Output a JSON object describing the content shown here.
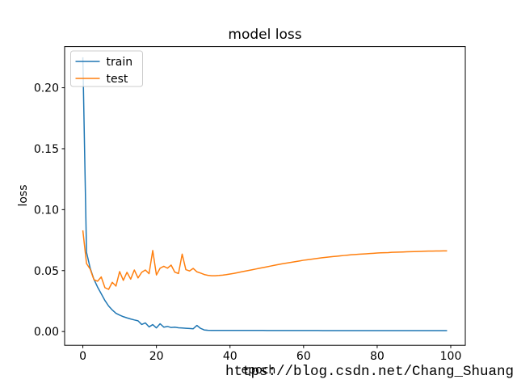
{
  "watermark": {
    "text": "https://blog.csdn.net/Chang_Shuang",
    "color": "#d9d9d9"
  },
  "chart_data": {
    "type": "line",
    "title": "model loss",
    "xlabel": "epoch",
    "ylabel": "loss",
    "grid": false,
    "legend": {
      "position": "upper left",
      "entries": [
        "train",
        "test"
      ]
    },
    "xlim": [
      -4.95,
      103.95
    ],
    "ylim": [
      -0.0113,
      0.2338
    ],
    "x_ticks": [
      0,
      20,
      40,
      60,
      80,
      100
    ],
    "x_tick_labels": [
      "0",
      "20",
      "40",
      "60",
      "80",
      "100"
    ],
    "y_ticks": [
      0.0,
      0.05,
      0.1,
      0.15,
      0.2
    ],
    "y_tick_labels": [
      "0.00",
      "0.05",
      "0.10",
      "0.15",
      "0.20"
    ],
    "x_start": 0,
    "x_step": 1,
    "epochs": 100,
    "series": [
      {
        "name": "train",
        "color": "#1f77b4",
        "values": [
          0.225,
          0.065,
          0.052,
          0.043,
          0.0365,
          0.031,
          0.0255,
          0.021,
          0.0177,
          0.015,
          0.0135,
          0.0122,
          0.0112,
          0.0103,
          0.0095,
          0.0088,
          0.0058,
          0.0071,
          0.0038,
          0.0057,
          0.003,
          0.0064,
          0.0036,
          0.0042,
          0.0033,
          0.0036,
          0.0031,
          0.0029,
          0.0027,
          0.0025,
          0.0023,
          0.005,
          0.0026,
          0.0013,
          0.001,
          0.00095,
          0.0009,
          0.0009,
          0.0009,
          0.0009,
          0.0009,
          0.0009,
          0.0009,
          0.0009,
          0.0009,
          0.0009,
          0.0009,
          0.0009,
          0.0009,
          0.0009,
          0.00085,
          0.00085,
          0.00085,
          0.00085,
          0.00085,
          0.00085,
          0.00085,
          0.00085,
          0.00085,
          0.00085,
          0.00085,
          0.00085,
          0.00085,
          0.00085,
          0.00085,
          0.0008,
          0.0008,
          0.0008,
          0.0008,
          0.0008,
          0.0008,
          0.0008,
          0.0008,
          0.0008,
          0.0008,
          0.0008,
          0.0008,
          0.0008,
          0.0008,
          0.0008,
          0.0008,
          0.0008,
          0.0008,
          0.0008,
          0.0008,
          0.0008,
          0.0008,
          0.0008,
          0.0008,
          0.0008,
          0.0008,
          0.0008,
          0.0008,
          0.0008,
          0.0008,
          0.0008,
          0.0008,
          0.0008,
          0.0008,
          0.0008
        ]
      },
      {
        "name": "test",
        "color": "#ff7f0e",
        "values": [
          0.083,
          0.0558,
          0.0512,
          0.0426,
          0.0413,
          0.0448,
          0.036,
          0.0346,
          0.0404,
          0.0373,
          0.0492,
          0.042,
          0.0486,
          0.043,
          0.0505,
          0.044,
          0.0486,
          0.0505,
          0.0475,
          0.0665,
          0.0464,
          0.052,
          0.0535,
          0.052,
          0.0545,
          0.0487,
          0.0476,
          0.0635,
          0.0508,
          0.0497,
          0.0518,
          0.049,
          0.048,
          0.0468,
          0.0461,
          0.0458,
          0.0458,
          0.046,
          0.0463,
          0.0467,
          0.0472,
          0.0477,
          0.0483,
          0.0489,
          0.0495,
          0.0501,
          0.0507,
          0.0513,
          0.0519,
          0.0525,
          0.0531,
          0.0537,
          0.0543,
          0.0549,
          0.0555,
          0.056,
          0.0565,
          0.057,
          0.0575,
          0.058,
          0.0585,
          0.0589,
          0.0593,
          0.0597,
          0.0601,
          0.0605,
          0.0609,
          0.0612,
          0.0615,
          0.0618,
          0.0621,
          0.0624,
          0.0627,
          0.063,
          0.0632,
          0.0634,
          0.0636,
          0.0638,
          0.064,
          0.0642,
          0.0644,
          0.0646,
          0.0647,
          0.0648,
          0.065,
          0.0651,
          0.0652,
          0.0653,
          0.0654,
          0.0655,
          0.0656,
          0.0657,
          0.0658,
          0.0659,
          0.066,
          0.066,
          0.0661,
          0.0661,
          0.0662,
          0.0662
        ]
      }
    ]
  }
}
